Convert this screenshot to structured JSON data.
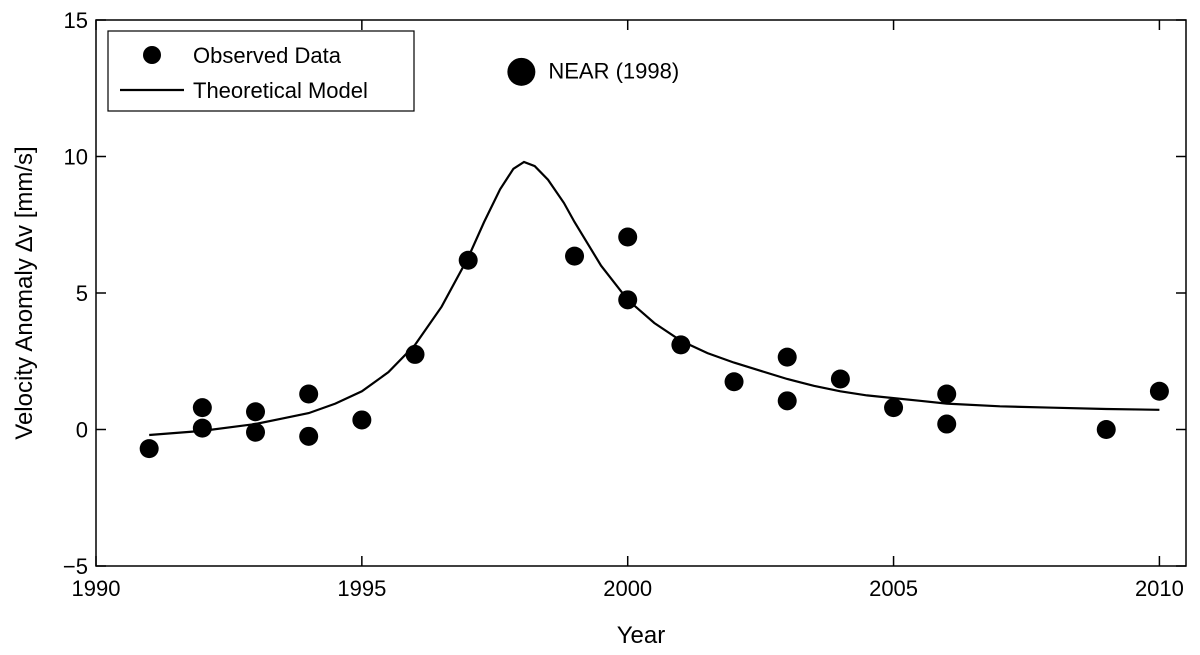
{
  "chart_data": {
    "type": "scatter",
    "xlabel": "Year",
    "ylabel": "Velocity Anomaly ∆v [mm/s]",
    "xlim": [
      1990,
      2010.5
    ],
    "ylim": [
      -5,
      15
    ],
    "xticks": [
      1990,
      1995,
      2000,
      2005,
      2010
    ],
    "yticks": [
      -5,
      0,
      5,
      10,
      15
    ],
    "grid": false,
    "legend": {
      "placement": "top-left",
      "entries": [
        {
          "label": "Observed Data",
          "marker": "filled-circle"
        },
        {
          "label": "Theoretical Model",
          "marker": "line"
        }
      ]
    },
    "series": [
      {
        "name": "Observed Data",
        "kind": "scatter",
        "color": "#000000",
        "points": [
          [
            1991,
            -0.7
          ],
          [
            1992,
            0.8
          ],
          [
            1992,
            0.05
          ],
          [
            1993,
            0.65
          ],
          [
            1993,
            -0.1
          ],
          [
            1994,
            1.3
          ],
          [
            1994,
            -0.25
          ],
          [
            1995,
            0.35
          ],
          [
            1996,
            2.75
          ],
          [
            1997,
            6.2
          ],
          [
            1999,
            6.35
          ],
          [
            2000,
            7.05
          ],
          [
            2000,
            4.75
          ],
          [
            2001,
            3.1
          ],
          [
            2002,
            1.75
          ],
          [
            2003,
            2.65
          ],
          [
            2003,
            1.05
          ],
          [
            2004,
            1.85
          ],
          [
            2005,
            0.8
          ],
          [
            2006,
            1.3
          ],
          [
            2006,
            0.2
          ],
          [
            2009,
            0.0
          ],
          [
            2010,
            1.4
          ]
        ]
      },
      {
        "name": "Theoretical Model",
        "kind": "line",
        "color": "#000000",
        "points": [
          [
            1991,
            -0.2
          ],
          [
            1992,
            -0.05
          ],
          [
            1993,
            0.2
          ],
          [
            1993.5,
            0.4
          ],
          [
            1994,
            0.6
          ],
          [
            1994.5,
            0.95
          ],
          [
            1995,
            1.4
          ],
          [
            1995.5,
            2.1
          ],
          [
            1996,
            3.1
          ],
          [
            1996.5,
            4.5
          ],
          [
            1997,
            6.3
          ],
          [
            1997.3,
            7.6
          ],
          [
            1997.6,
            8.8
          ],
          [
            1997.85,
            9.55
          ],
          [
            1998.05,
            9.8
          ],
          [
            1998.25,
            9.65
          ],
          [
            1998.5,
            9.15
          ],
          [
            1998.8,
            8.3
          ],
          [
            1999,
            7.6
          ],
          [
            1999.5,
            6.0
          ],
          [
            2000,
            4.75
          ],
          [
            2000.5,
            3.9
          ],
          [
            2001,
            3.25
          ],
          [
            2001.5,
            2.8
          ],
          [
            2002,
            2.45
          ],
          [
            2002.5,
            2.15
          ],
          [
            2003,
            1.85
          ],
          [
            2003.5,
            1.6
          ],
          [
            2004,
            1.4
          ],
          [
            2004.5,
            1.25
          ],
          [
            2005,
            1.15
          ],
          [
            2005.5,
            1.05
          ],
          [
            2006,
            0.95
          ],
          [
            2007,
            0.85
          ],
          [
            2008,
            0.8
          ],
          [
            2009,
            0.75
          ],
          [
            2010,
            0.72
          ]
        ]
      }
    ],
    "annotations": [
      {
        "text": "NEAR (1998)",
        "x": 1998,
        "y": 13.1,
        "marker": "large-filled-circle"
      }
    ]
  }
}
